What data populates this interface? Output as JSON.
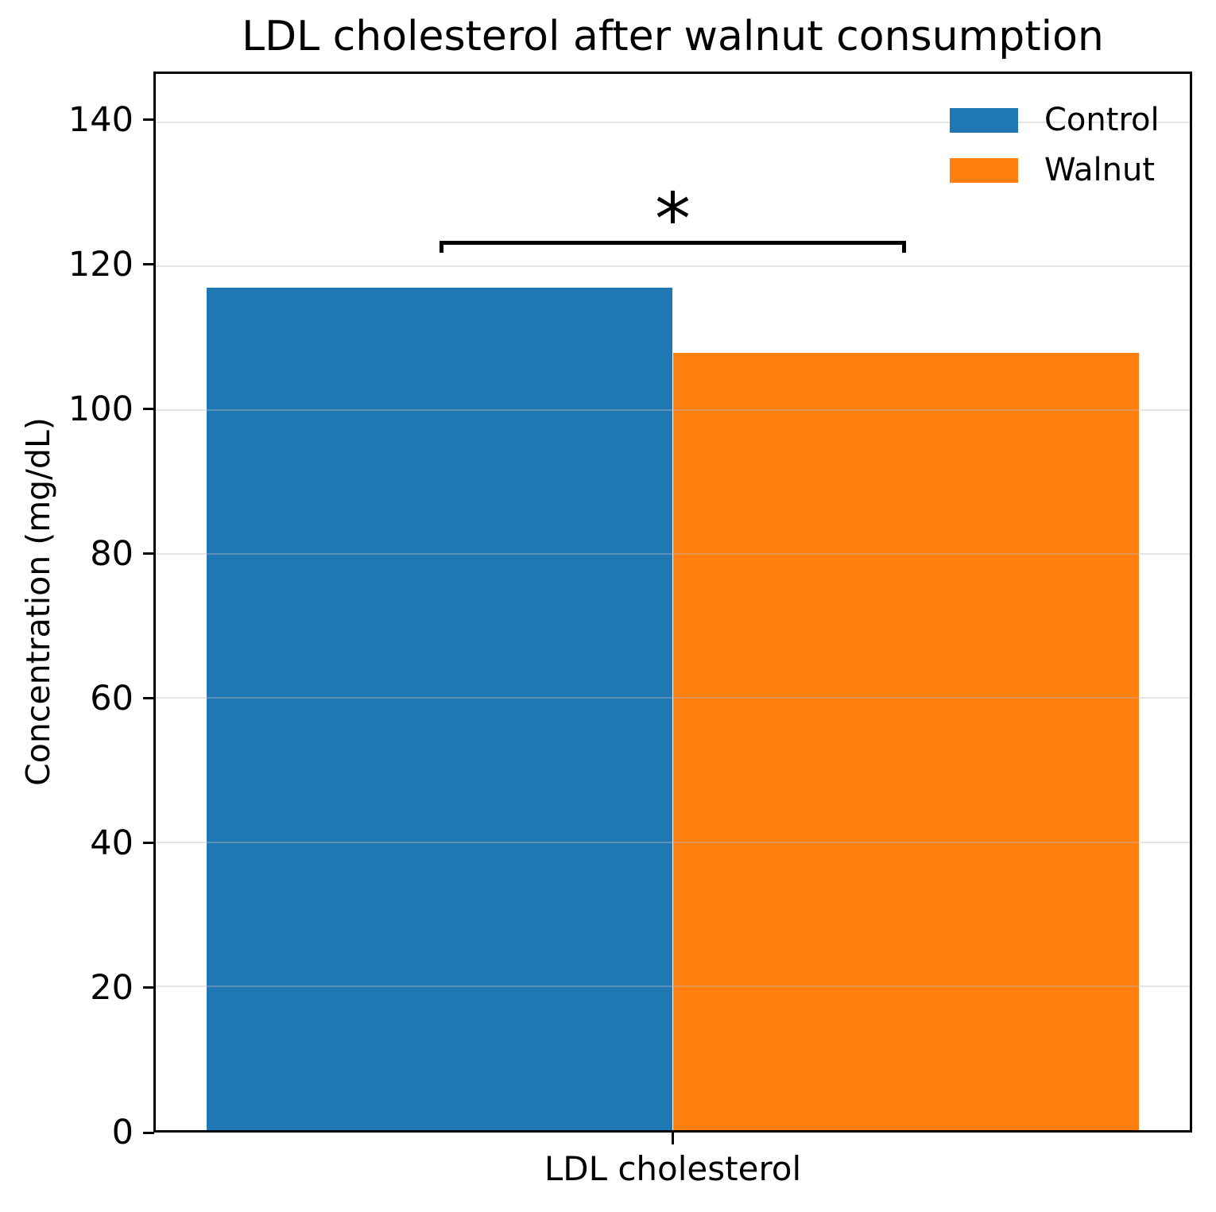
{
  "chart_data": {
    "type": "bar",
    "title": "LDL cholesterol after walnut consumption",
    "categories": [
      "LDL cholesterol"
    ],
    "series": [
      {
        "name": "Control",
        "values": [
          117
        ],
        "color": "#1f77b4"
      },
      {
        "name": "Walnut",
        "values": [
          108
        ],
        "color": "#ff7f0e"
      }
    ],
    "xlabel": "",
    "ylabel": "Concentration (mg/dL)",
    "ylim": [
      0,
      146.7
    ],
    "yticks": [
      0,
      20,
      40,
      60,
      80,
      100,
      120,
      140
    ],
    "grid": true,
    "grid_color": "#bbbbbb",
    "legend_position": "upper right",
    "legend_frame": false,
    "significance": {
      "label": "*",
      "between": [
        "Control",
        "Walnut"
      ],
      "bracket_y": 123.6,
      "bracket_drop": 1.6
    },
    "colors": {
      "control": "#1f77b4",
      "walnut": "#ff7f0e"
    }
  }
}
